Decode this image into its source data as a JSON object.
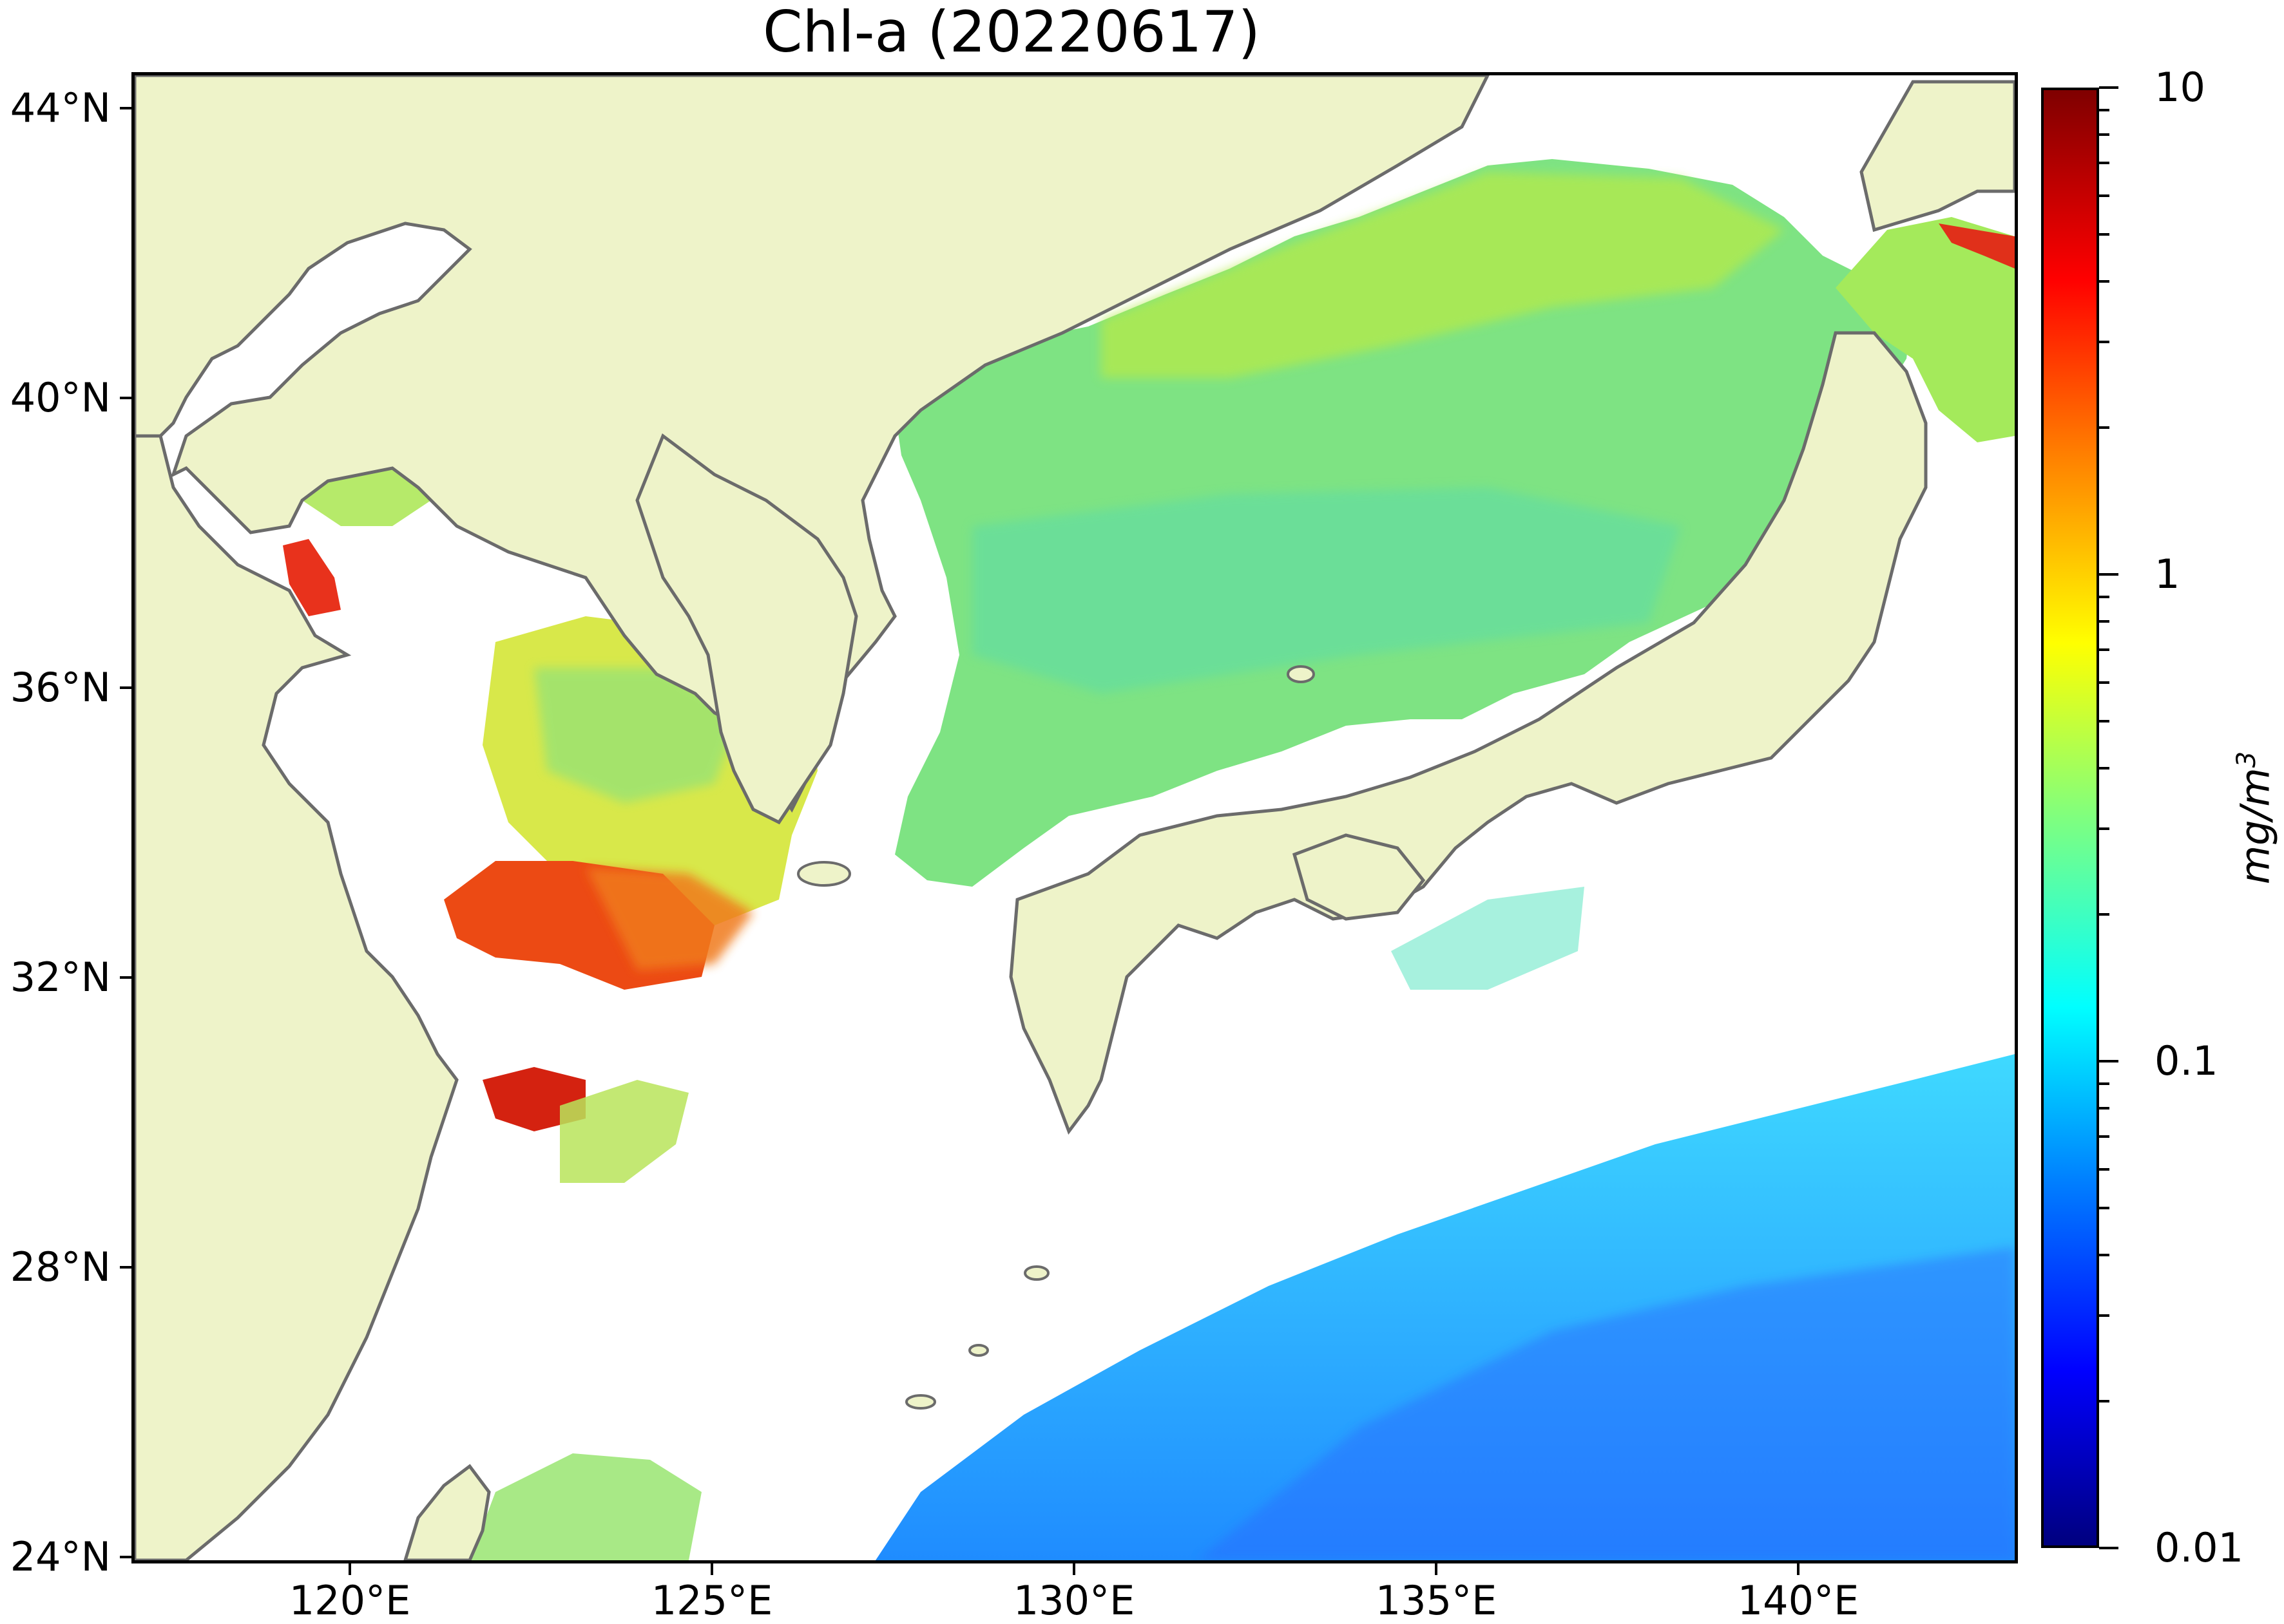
{
  "title": "Chl-a (20220617)",
  "map": {
    "type": "heatmap",
    "variable": "Chl-a",
    "date": "20220617",
    "extent": {
      "lon": [
        117,
        143
      ],
      "lat": [
        24,
        44.5
      ]
    },
    "land_color": "#eef3c9",
    "coast_color": "#6b6b6b",
    "nodata_color": "#ffffff",
    "yticks": [
      {
        "label": "44°N",
        "lat": 44
      },
      {
        "label": "40°N",
        "lat": 40
      },
      {
        "label": "36°N",
        "lat": 36
      },
      {
        "label": "32°N",
        "lat": 32
      },
      {
        "label": "28°N",
        "lat": 28
      },
      {
        "label": "24°N",
        "lat": 24
      }
    ],
    "xticks": [
      {
        "label": "120°E",
        "lon": 120
      },
      {
        "label": "125°E",
        "lon": 125
      },
      {
        "label": "130°E",
        "lon": 130
      },
      {
        "label": "135°E",
        "lon": 135
      },
      {
        "label": "140°E",
        "lon": 140
      }
    ]
  },
  "colorbar": {
    "label": "mg/m3",
    "scale": "log",
    "range": [
      0.01,
      10
    ],
    "colormap": "jet",
    "ticks": [
      {
        "label": "10",
        "value": 10
      },
      {
        "label": "1",
        "value": 1
      },
      {
        "label": "0.1",
        "value": 0.1
      },
      {
        "label": "0.01",
        "value": 0.01
      }
    ],
    "minor_ticks": [
      0.02,
      0.03,
      0.04,
      0.05,
      0.06,
      0.07,
      0.08,
      0.09,
      0.2,
      0.3,
      0.4,
      0.5,
      0.6,
      0.7,
      0.8,
      0.9,
      2,
      3,
      4,
      5,
      6,
      7,
      8,
      9
    ]
  },
  "chart_data": {
    "type": "heatmap",
    "title": "Chl-a (20220617)",
    "xlabel": "",
    "ylabel": "",
    "xlim": [
      117,
      143
    ],
    "ylim": [
      24,
      44.5
    ],
    "x_ticks": [
      "120°E",
      "125°E",
      "130°E",
      "135°E",
      "140°E"
    ],
    "y_ticks": [
      "24°N",
      "28°N",
      "32°N",
      "36°N",
      "40°N",
      "44°N"
    ],
    "colorbar": {
      "label": "mg/m3",
      "scale": "log",
      "range": [
        0.01,
        10
      ],
      "ticks": [
        "0.01",
        "0.1",
        "1",
        "10"
      ]
    }
  }
}
